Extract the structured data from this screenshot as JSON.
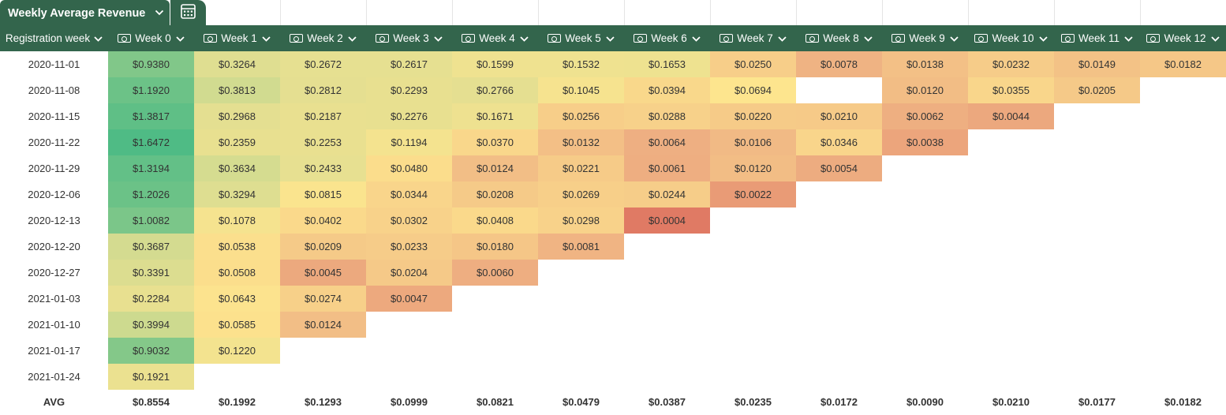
{
  "tab": {
    "title": "Weekly Average Revenue",
    "calc_icon": "calculator-icon"
  },
  "header": {
    "first_column": "Registration week",
    "weeks": [
      "Week 0",
      "Week 1",
      "Week 2",
      "Week 3",
      "Week 4",
      "Week 5",
      "Week 6",
      "Week 7",
      "Week 8",
      "Week 9",
      "Week 10",
      "Week 11",
      "Week 12"
    ],
    "week_icon": "money-icon",
    "background": "#33654c"
  },
  "rows": [
    {
      "date": "2020-11-01",
      "values": [
        "$0.9380",
        "$0.3264",
        "$0.2672",
        "$0.2617",
        "$0.1599",
        "$0.1532",
        "$0.1653",
        "$0.0250",
        "$0.0078",
        "$0.0138",
        "$0.0232",
        "$0.0149",
        "$0.0182"
      ]
    },
    {
      "date": "2020-11-08",
      "values": [
        "$1.1920",
        "$0.3813",
        "$0.2812",
        "$0.2293",
        "$0.2766",
        "$0.1045",
        "$0.0394",
        "$0.0694",
        "",
        "$0.0120",
        "$0.0355",
        "$0.0205"
      ]
    },
    {
      "date": "2020-11-15",
      "values": [
        "$1.3817",
        "$0.2968",
        "$0.2187",
        "$0.2276",
        "$0.1671",
        "$0.0256",
        "$0.0288",
        "$0.0220",
        "$0.0210",
        "$0.0062",
        "$0.0044"
      ]
    },
    {
      "date": "2020-11-22",
      "values": [
        "$1.6472",
        "$0.2359",
        "$0.2253",
        "$0.1194",
        "$0.0370",
        "$0.0132",
        "$0.0064",
        "$0.0106",
        "$0.0346",
        "$0.0038"
      ]
    },
    {
      "date": "2020-11-29",
      "values": [
        "$1.3194",
        "$0.3634",
        "$0.2433",
        "$0.0480",
        "$0.0124",
        "$0.0221",
        "$0.0061",
        "$0.0120",
        "$0.0054"
      ]
    },
    {
      "date": "2020-12-06",
      "values": [
        "$1.2026",
        "$0.3294",
        "$0.0815",
        "$0.0344",
        "$0.0208",
        "$0.0269",
        "$0.0244",
        "$0.0022"
      ]
    },
    {
      "date": "2020-12-13",
      "values": [
        "$1.0082",
        "$0.1078",
        "$0.0402",
        "$0.0302",
        "$0.0408",
        "$0.0298",
        "$0.0004"
      ]
    },
    {
      "date": "2020-12-20",
      "values": [
        "$0.3687",
        "$0.0538",
        "$0.0209",
        "$0.0233",
        "$0.0180",
        "$0.0081"
      ]
    },
    {
      "date": "2020-12-27",
      "values": [
        "$0.3391",
        "$0.0508",
        "$0.0045",
        "$0.0204",
        "$0.0060"
      ]
    },
    {
      "date": "2021-01-03",
      "values": [
        "$0.2284",
        "$0.0643",
        "$0.0274",
        "$0.0047"
      ]
    },
    {
      "date": "2021-01-10",
      "values": [
        "$0.3994",
        "$0.0585",
        "$0.0124"
      ]
    },
    {
      "date": "2021-01-17",
      "values": [
        "$0.9032",
        "$0.1220"
      ]
    },
    {
      "date": "2021-01-24",
      "values": [
        "$0.1921"
      ]
    }
  ],
  "avg": {
    "label": "AVG",
    "values": [
      "$0.8554",
      "$0.1992",
      "$0.1293",
      "$0.0999",
      "$0.0821",
      "$0.0479",
      "$0.0387",
      "$0.0235",
      "$0.0172",
      "$0.0090",
      "$0.0210",
      "$0.0177",
      "$0.0182"
    ]
  },
  "heatmap_colors": {
    "low": "#e07a64",
    "mid_low": "#efb283",
    "mid": "#fde58e",
    "mid_high": "#e3df91",
    "high": "#4fbb85"
  }
}
